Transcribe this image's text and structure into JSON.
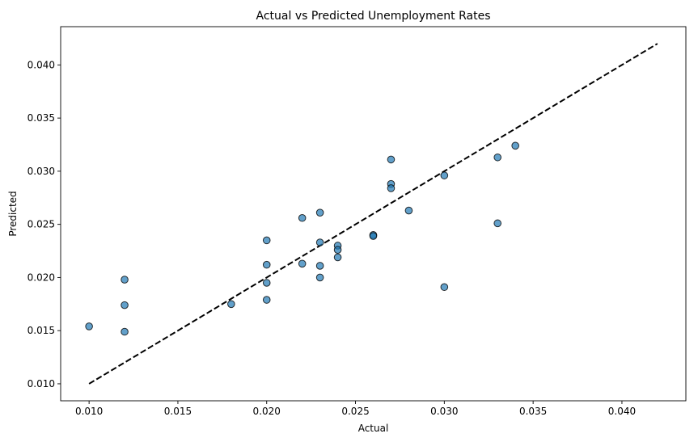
{
  "chart_data": {
    "type": "scatter",
    "title": "Actual vs Predicted Unemployment Rates",
    "xlabel": "Actual",
    "ylabel": "Predicted",
    "xlim": [
      0.0084,
      0.0436
    ],
    "ylim": [
      0.0084,
      0.0436
    ],
    "xticks": [
      "0.010",
      "0.015",
      "0.020",
      "0.025",
      "0.030",
      "0.035",
      "0.040"
    ],
    "yticks": [
      "0.010",
      "0.015",
      "0.020",
      "0.025",
      "0.030",
      "0.035",
      "0.040"
    ],
    "grid": false,
    "point_color": "#1f77b4",
    "point_edge_color": "#000000",
    "reference_line": {
      "from": [
        0.01,
        0.01
      ],
      "to": [
        0.042,
        0.042
      ],
      "style": "dashed",
      "color": "#000000"
    },
    "points": [
      {
        "x": 0.01,
        "y": 0.0154
      },
      {
        "x": 0.012,
        "y": 0.0198
      },
      {
        "x": 0.012,
        "y": 0.0174
      },
      {
        "x": 0.012,
        "y": 0.0149
      },
      {
        "x": 0.018,
        "y": 0.0175
      },
      {
        "x": 0.02,
        "y": 0.0235
      },
      {
        "x": 0.02,
        "y": 0.0212
      },
      {
        "x": 0.02,
        "y": 0.0195
      },
      {
        "x": 0.02,
        "y": 0.0179
      },
      {
        "x": 0.022,
        "y": 0.0256
      },
      {
        "x": 0.022,
        "y": 0.0213
      },
      {
        "x": 0.023,
        "y": 0.0261
      },
      {
        "x": 0.023,
        "y": 0.0233
      },
      {
        "x": 0.023,
        "y": 0.0211
      },
      {
        "x": 0.023,
        "y": 0.02
      },
      {
        "x": 0.024,
        "y": 0.023
      },
      {
        "x": 0.024,
        "y": 0.0226
      },
      {
        "x": 0.024,
        "y": 0.0219
      },
      {
        "x": 0.026,
        "y": 0.024
      },
      {
        "x": 0.026,
        "y": 0.0239
      },
      {
        "x": 0.027,
        "y": 0.0311
      },
      {
        "x": 0.027,
        "y": 0.0288
      },
      {
        "x": 0.027,
        "y": 0.0284
      },
      {
        "x": 0.028,
        "y": 0.0263
      },
      {
        "x": 0.03,
        "y": 0.0296
      },
      {
        "x": 0.03,
        "y": 0.0191
      },
      {
        "x": 0.033,
        "y": 0.0313
      },
      {
        "x": 0.033,
        "y": 0.0251
      },
      {
        "x": 0.034,
        "y": 0.0324
      }
    ]
  }
}
